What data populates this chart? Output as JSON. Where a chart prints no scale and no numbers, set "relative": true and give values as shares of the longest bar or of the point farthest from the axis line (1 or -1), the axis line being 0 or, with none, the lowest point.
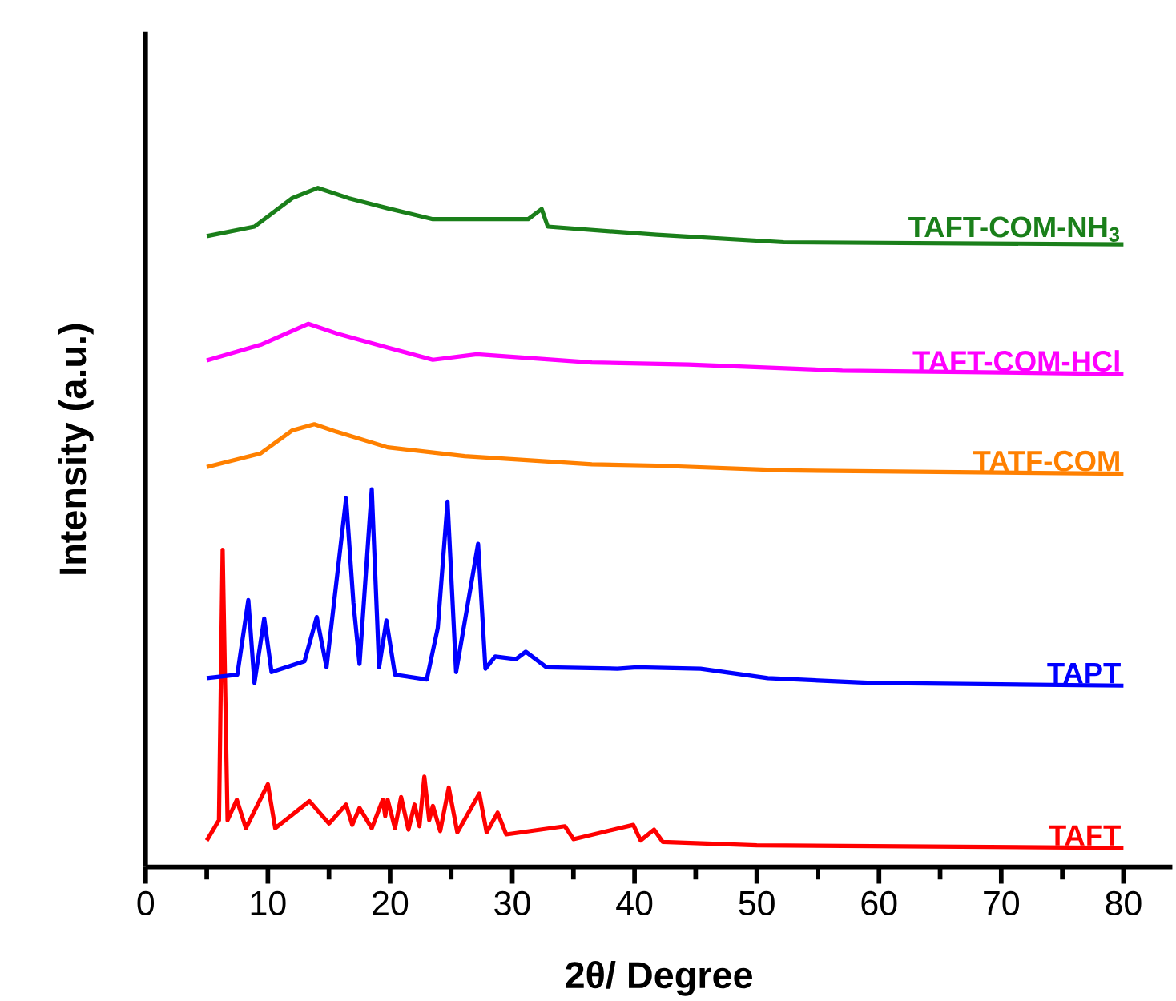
{
  "chart_data": {
    "type": "line",
    "xlabel": "2θ/ Degree",
    "ylabel": "Intensity (a.u.)",
    "relative": true,
    "xlim": [
      0,
      84
    ],
    "xticks": [
      0,
      10,
      20,
      30,
      40,
      50,
      60,
      70,
      80
    ],
    "series": [
      {
        "name": "TAFT",
        "color": "#ff0000",
        "x": [
          5,
          6.0,
          6.3,
          6.7,
          7.46,
          8.2,
          10.0,
          10.6,
          13.4,
          15,
          16.4,
          16.9,
          17.5,
          18.5,
          19.4,
          19.6,
          19.8,
          20.4,
          20.9,
          21.5,
          22.0,
          22.4,
          22.8,
          23.2,
          23.5,
          24.1,
          24.8,
          25.5,
          27.3,
          27.9,
          28.8,
          29.5,
          34.3,
          35,
          39.9,
          40.5,
          41.6,
          42.3,
          50,
          80
        ],
        "values": [
          0.039,
          0.069,
          0.467,
          0.069,
          0.099,
          0.057,
          0.122,
          0.057,
          0.097,
          0.064,
          0.092,
          0.062,
          0.087,
          0.057,
          0.099,
          0.075,
          0.099,
          0.057,
          0.103,
          0.055,
          0.092,
          0.06,
          0.133,
          0.069,
          0.09,
          0.053,
          0.117,
          0.051,
          0.108,
          0.051,
          0.08,
          0.048,
          0.06,
          0.041,
          0.062,
          0.039,
          0.055,
          0.037,
          0.032,
          0.028
        ]
      },
      {
        "name": "TAPT",
        "color": "#0000ff",
        "x": [
          5,
          7.5,
          8.4,
          8.9,
          9.7,
          10.3,
          13,
          14.0,
          14.8,
          16.4,
          17.0,
          17.5,
          18.5,
          19.1,
          19.7,
          20.4,
          23,
          23.9,
          24.7,
          25.4,
          27.2,
          27.8,
          28.6,
          30.3,
          31.1,
          32.8,
          38.6,
          40.2,
          45.4,
          50.9,
          59.4,
          80
        ],
        "values": [
          0.278,
          0.283,
          0.393,
          0.271,
          0.366,
          0.287,
          0.303,
          0.368,
          0.294,
          0.543,
          0.389,
          0.299,
          0.556,
          0.294,
          0.363,
          0.283,
          0.276,
          0.352,
          0.538,
          0.287,
          0.476,
          0.292,
          0.31,
          0.306,
          0.317,
          0.294,
          0.292,
          0.294,
          0.292,
          0.278,
          0.271,
          0.267
        ]
      },
      {
        "name": "TATF-COM",
        "color": "#ff8000",
        "x": [
          5,
          9.4,
          12,
          13.8,
          15.6,
          19.8,
          26.1,
          36.5,
          41.8,
          52.2,
          80
        ],
        "values": [
          0.589,
          0.609,
          0.643,
          0.652,
          0.641,
          0.618,
          0.605,
          0.593,
          0.591,
          0.584,
          0.579
        ]
      },
      {
        "name": "TAFT-COM-HCl",
        "color": "#ff00ff",
        "x": [
          5,
          9.4,
          13.3,
          15.6,
          19.8,
          23.5,
          27.1,
          36.5,
          44.4,
          57,
          80
        ],
        "values": [
          0.746,
          0.769,
          0.8,
          0.786,
          0.765,
          0.747,
          0.755,
          0.743,
          0.74,
          0.731,
          0.726
        ]
      },
      {
        "name": "TAFT-COM-NH$_{3}$",
        "color": "#1a7f1a",
        "x": [
          5,
          8.9,
          12,
          14.1,
          16.6,
          19.8,
          23.5,
          31.3,
          32.4,
          32.9,
          41.8,
          52.2,
          80
        ],
        "values": [
          0.929,
          0.943,
          0.985,
          1,
          0.985,
          0.97,
          0.954,
          0.954,
          0.969,
          0.943,
          0.931,
          0.92,
          0.917
        ]
      }
    ]
  }
}
